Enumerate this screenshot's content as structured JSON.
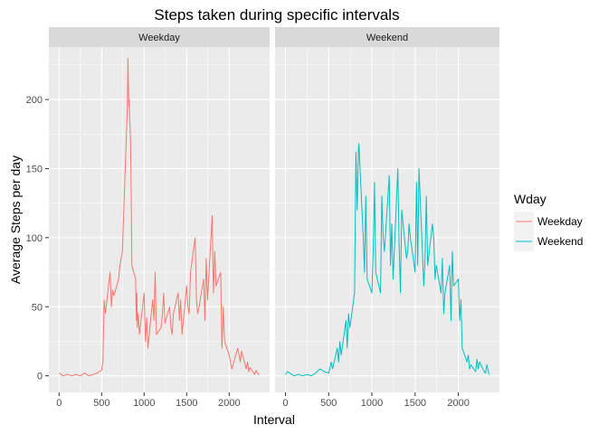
{
  "chart_data": {
    "type": "line",
    "title": "Steps taken during specific intervals",
    "xlabel": "Interval",
    "ylabel": "Average Steps per day",
    "xlim": [
      -120,
      2475
    ],
    "ylim": [
      -12,
      238
    ],
    "x_ticks": [
      0,
      500,
      1000,
      1500,
      2000
    ],
    "y_ticks": [
      0,
      50,
      100,
      150,
      200
    ],
    "grid": true,
    "legend": {
      "title": "Wday",
      "position": "right"
    },
    "facets": [
      "Weekday",
      "Weekend"
    ],
    "series": [
      {
        "name": "Weekday",
        "color": "#F8766D",
        "panel": "Weekday",
        "x": [
          0,
          25,
          50,
          100,
          150,
          200,
          250,
          300,
          350,
          400,
          450,
          500,
          515,
          530,
          545,
          600,
          615,
          630,
          645,
          700,
          715,
          730,
          745,
          800,
          805,
          810,
          815,
          820,
          825,
          830,
          835,
          840,
          845,
          850,
          855,
          900,
          905,
          910,
          915,
          920,
          930,
          945,
          1000,
          1015,
          1030,
          1045,
          1100,
          1115,
          1130,
          1145,
          1200,
          1215,
          1230,
          1245,
          1300,
          1315,
          1330,
          1345,
          1400,
          1415,
          1430,
          1445,
          1500,
          1515,
          1530,
          1545,
          1600,
          1615,
          1630,
          1645,
          1700,
          1715,
          1730,
          1745,
          1800,
          1815,
          1830,
          1845,
          1900,
          1915,
          1930,
          1945,
          2000,
          2015,
          2030,
          2045,
          2100,
          2115,
          2130,
          2145,
          2200,
          2215,
          2230,
          2245,
          2300,
          2315,
          2330,
          2355
        ],
        "y": [
          2,
          1,
          0,
          1,
          0,
          1,
          0,
          2,
          0,
          1,
          2,
          4,
          10,
          55,
          45,
          75,
          50,
          62,
          58,
          70,
          80,
          85,
          90,
          190,
          205,
          230,
          210,
          195,
          200,
          185,
          180,
          170,
          150,
          120,
          80,
          70,
          50,
          40,
          60,
          35,
          45,
          30,
          60,
          25,
          42,
          20,
          55,
          40,
          75,
          30,
          35,
          45,
          60,
          38,
          50,
          35,
          30,
          45,
          60,
          40,
          55,
          30,
          65,
          50,
          45,
          75,
          100,
          55,
          45,
          50,
          70,
          40,
          85,
          55,
          116,
          60,
          90,
          65,
          75,
          20,
          50,
          25,
          15,
          10,
          5,
          8,
          20,
          15,
          10,
          18,
          5,
          10,
          3,
          6,
          1,
          4,
          2,
          1
        ]
      },
      {
        "name": "Weekend",
        "color": "#00BFC4",
        "panel": "Weekend",
        "x": [
          0,
          25,
          50,
          100,
          150,
          200,
          250,
          300,
          350,
          400,
          450,
          500,
          530,
          545,
          600,
          615,
          630,
          645,
          700,
          715,
          730,
          745,
          800,
          815,
          830,
          845,
          850,
          900,
          915,
          930,
          945,
          1000,
          1015,
          1030,
          1045,
          1100,
          1115,
          1130,
          1145,
          1200,
          1215,
          1230,
          1245,
          1300,
          1315,
          1330,
          1345,
          1400,
          1415,
          1430,
          1445,
          1500,
          1515,
          1530,
          1545,
          1600,
          1615,
          1630,
          1645,
          1700,
          1715,
          1730,
          1745,
          1800,
          1815,
          1830,
          1845,
          1900,
          1915,
          1930,
          1945,
          2000,
          2015,
          2030,
          2045,
          2100,
          2115,
          2130,
          2145,
          2200,
          2215,
          2230,
          2245,
          2300,
          2315,
          2330,
          2355
        ],
        "y": [
          1,
          3,
          2,
          0,
          1,
          0,
          1,
          0,
          2,
          5,
          3,
          2,
          10,
          5,
          20,
          10,
          25,
          15,
          40,
          20,
          45,
          35,
          60,
          162,
          120,
          165,
          168,
          100,
          75,
          130,
          70,
          60,
          90,
          140,
          75,
          60,
          130,
          100,
          90,
          145,
          80,
          110,
          70,
          150,
          95,
          60,
          120,
          85,
          90,
          110,
          100,
          75,
          140,
          80,
          150,
          65,
          85,
          130,
          80,
          110,
          100,
          70,
          80,
          60,
          85,
          45,
          60,
          80,
          40,
          90,
          65,
          70,
          40,
          55,
          20,
          10,
          15,
          5,
          8,
          3,
          12,
          5,
          10,
          3,
          2,
          8,
          1
        ]
      }
    ]
  }
}
